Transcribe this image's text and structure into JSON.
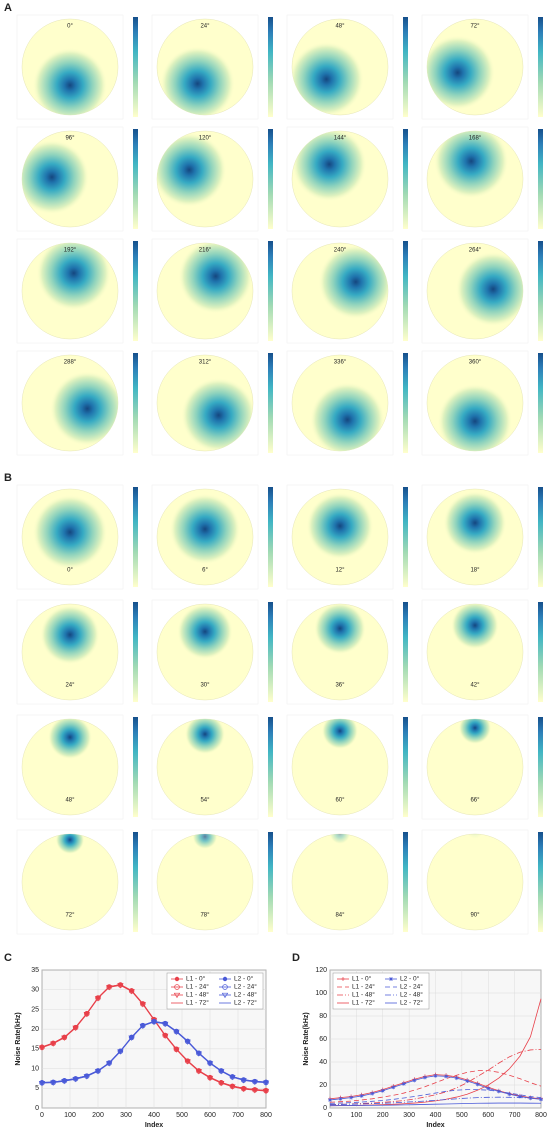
{
  "panel_a": {
    "label": "A",
    "angles": [
      "0°",
      "24°",
      "48°",
      "72°",
      "96°",
      "120°",
      "144°",
      "168°",
      "192°",
      "216°",
      "240°",
      "264°",
      "288°",
      "312°",
      "336°",
      "360°"
    ]
  },
  "panel_b": {
    "label": "B",
    "angles": [
      "0°",
      "6°",
      "12°",
      "18°",
      "24°",
      "30°",
      "36°",
      "42°",
      "48°",
      "54°",
      "60°",
      "66°",
      "72°",
      "78°",
      "84°",
      "90°"
    ]
  },
  "chart_data": [
    {
      "type": "line",
      "label": "C",
      "xlabel": "Index",
      "ylabel": "Noise Rate(kHz)",
      "x": [
        0,
        40,
        80,
        120,
        160,
        200,
        240,
        280,
        320,
        360,
        400,
        440,
        480,
        520,
        560,
        600,
        640,
        680,
        720,
        760,
        800
      ],
      "xlim": [
        0,
        800
      ],
      "ylim": [
        0,
        35
      ],
      "xticks": [
        0,
        100,
        200,
        300,
        400,
        500,
        600,
        700,
        800
      ],
      "yticks": [
        0,
        5,
        10,
        15,
        20,
        25,
        30,
        35
      ],
      "grid": true,
      "legend": "upper right",
      "series": [
        {
          "name": "L1 - 0°",
          "color": "#e8404a",
          "marker": "filled-circle",
          "dash": "none",
          "values": [
            15.5,
            16.5,
            18,
            20.5,
            24,
            28,
            30.8,
            31.3,
            29.8,
            26.5,
            22.5,
            18.5,
            15,
            12,
            9.5,
            7.8,
            6.5,
            5.6,
            5,
            4.7,
            4.5
          ]
        },
        {
          "name": "L1 - 24°",
          "color": "#e8404a",
          "marker": "circle",
          "dash": "none",
          "values": [
            15.4,
            16.4,
            17.9,
            20.4,
            23.9,
            27.9,
            30.7,
            31.2,
            29.7,
            26.4,
            22.4,
            18.4,
            14.9,
            11.9,
            9.4,
            7.7,
            6.4,
            5.5,
            4.9,
            4.6,
            4.4
          ]
        },
        {
          "name": "L1 - 48°",
          "color": "#e8404a",
          "marker": "triangle-down",
          "dash": "none",
          "values": [
            15.3,
            16.3,
            17.8,
            20.3,
            23.8,
            27.8,
            30.6,
            31.1,
            29.6,
            26.3,
            22.3,
            18.3,
            14.8,
            11.8,
            9.3,
            7.6,
            6.3,
            5.4,
            4.8,
            4.5,
            4.3
          ]
        },
        {
          "name": "L1 - 72°",
          "color": "#e8404a",
          "marker": "none",
          "dash": "none",
          "values": [
            15.5,
            16.5,
            18,
            20.5,
            24,
            28,
            30.8,
            31.3,
            29.8,
            26.5,
            22.5,
            18.5,
            15,
            12,
            9.5,
            7.8,
            6.5,
            5.6,
            5,
            4.7,
            4.5
          ]
        },
        {
          "name": "L2 - 0°",
          "color": "#4a5ad8",
          "marker": "filled-circle",
          "dash": "none",
          "values": [
            6.5,
            6.6,
            7,
            7.5,
            8.2,
            9.5,
            11.5,
            14.5,
            18,
            21,
            22,
            21.5,
            19.5,
            17,
            14,
            11.5,
            9.5,
            8,
            7.2,
            6.8,
            6.6
          ]
        },
        {
          "name": "L2 - 24°",
          "color": "#4a5ad8",
          "marker": "circle",
          "dash": "none",
          "values": [
            6.4,
            6.5,
            6.9,
            7.4,
            8.1,
            9.4,
            11.4,
            14.4,
            17.9,
            20.9,
            21.9,
            21.4,
            19.4,
            16.9,
            13.9,
            11.4,
            9.4,
            7.9,
            7.1,
            6.7,
            6.5
          ]
        },
        {
          "name": "L2 - 48°",
          "color": "#4a5ad8",
          "marker": "triangle-down",
          "dash": "none",
          "values": [
            6.3,
            6.4,
            6.8,
            7.3,
            8,
            9.3,
            11.3,
            14.3,
            17.8,
            20.8,
            21.8,
            21.3,
            19.3,
            16.8,
            13.8,
            11.3,
            9.3,
            7.8,
            7,
            6.6,
            6.4
          ]
        },
        {
          "name": "L2 - 72°",
          "color": "#4a5ad8",
          "marker": "none",
          "dash": "none",
          "values": [
            6.5,
            6.6,
            7,
            7.5,
            8.2,
            9.5,
            11.5,
            14.5,
            18,
            21,
            22,
            21.5,
            19.5,
            17,
            14,
            11.5,
            9.5,
            8,
            7.2,
            6.8,
            6.6
          ]
        }
      ]
    },
    {
      "type": "line",
      "label": "D",
      "xlabel": "Index",
      "ylabel": "Noise Rate(kHz)",
      "x": [
        0,
        40,
        80,
        120,
        160,
        200,
        240,
        280,
        320,
        360,
        400,
        440,
        480,
        520,
        560,
        600,
        640,
        680,
        720,
        760,
        800
      ],
      "xlim": [
        0,
        800
      ],
      "ylim": [
        0,
        120
      ],
      "xticks": [
        0,
        100,
        200,
        300,
        400,
        500,
        600,
        700,
        800
      ],
      "yticks": [
        0,
        20,
        40,
        60,
        80,
        100,
        120
      ],
      "grid": true,
      "legend": "upper left",
      "series": [
        {
          "name": "L1 - 0°",
          "color": "#e8404a",
          "marker": "plus",
          "dash": "none",
          "values": [
            8,
            9,
            10,
            11.5,
            13.5,
            16,
            19,
            22,
            25,
            27.5,
            29,
            28.5,
            27,
            24.5,
            21.5,
            18,
            15,
            12.5,
            10.5,
            9,
            8
          ]
        },
        {
          "name": "L1 - 24°",
          "color": "#e8404a",
          "marker": "none",
          "dash": "5,3",
          "values": [
            5,
            5.5,
            6,
            7,
            8,
            9.5,
            11,
            13,
            15.5,
            18.5,
            22,
            25.5,
            28.5,
            31,
            32.5,
            32.5,
            31,
            28.5,
            25.5,
            22,
            19
          ]
        },
        {
          "name": "L1 - 48°",
          "color": "#e8404a",
          "marker": "none",
          "dash": "6,2,1,2",
          "values": [
            3,
            3.2,
            3.5,
            3.9,
            4.3,
            4.9,
            5.6,
            6.5,
            7.8,
            9.5,
            11.5,
            14,
            17.5,
            22,
            27.5,
            33,
            39,
            44.5,
            48.5,
            50.5,
            51
          ]
        },
        {
          "name": "L1 - 72°",
          "color": "#e8404a",
          "marker": "none",
          "dash": "none",
          "values": [
            2,
            2.1,
            2.2,
            2.4,
            2.6,
            2.9,
            3.2,
            3.7,
            4.3,
            5.1,
            6.2,
            7.6,
            9.5,
            12,
            15.5,
            20,
            26,
            34,
            45,
            62,
            95
          ]
        },
        {
          "name": "L2 - 0°",
          "color": "#4a5ad8",
          "marker": "star",
          "dash": "none",
          "values": [
            7,
            8,
            9,
            10.5,
            12.5,
            15,
            18,
            21,
            24,
            26.5,
            28,
            27.5,
            26,
            23.5,
            20.5,
            17,
            14.5,
            12,
            10,
            8.5,
            7.5
          ]
        },
        {
          "name": "L2 - 24°",
          "color": "#4a5ad8",
          "marker": "none",
          "dash": "5,3",
          "values": [
            4,
            4.3,
            4.7,
            5.2,
            5.8,
            6.5,
            7.5,
            8.7,
            10,
            11.5,
            13,
            14.5,
            15.5,
            16,
            16,
            15.5,
            14.5,
            13,
            11.5,
            10,
            9
          ]
        },
        {
          "name": "L2 - 48°",
          "color": "#4a5ad8",
          "marker": "none",
          "dash": "6,2,1,2",
          "values": [
            3,
            3.1,
            3.3,
            3.5,
            3.8,
            4.1,
            4.5,
            5,
            5.5,
            6,
            6.7,
            7.3,
            8,
            8.6,
            9,
            9.3,
            9.4,
            9.3,
            9,
            8.6,
            8
          ]
        },
        {
          "name": "L2 - 72°",
          "color": "#4a5ad8",
          "marker": "none",
          "dash": "none",
          "values": [
            2,
            2.05,
            2.1,
            2.2,
            2.3,
            2.4,
            2.5,
            2.7,
            2.9,
            3.1,
            3.3,
            3.5,
            3.7,
            3.9,
            4.1,
            4.2,
            4.3,
            4.3,
            4.3,
            4.2,
            4.1
          ]
        }
      ]
    }
  ]
}
